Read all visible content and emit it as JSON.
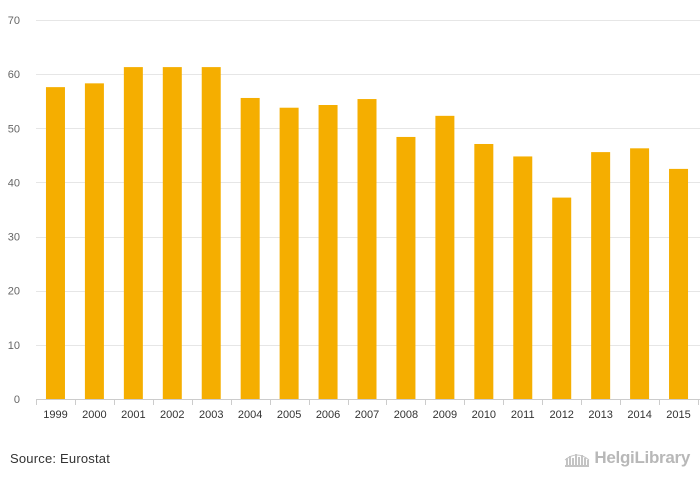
{
  "chart_data": {
    "type": "bar",
    "categories": [
      "1999",
      "2000",
      "2001",
      "2002",
      "2003",
      "2004",
      "2005",
      "2006",
      "2007",
      "2008",
      "2009",
      "2010",
      "2011",
      "2012",
      "2013",
      "2014",
      "2015"
    ],
    "values": [
      57.6,
      58.3,
      61.3,
      61.3,
      61.3,
      55.6,
      53.8,
      54.3,
      55.4,
      48.4,
      52.3,
      47.1,
      44.8,
      37.2,
      45.6,
      46.3,
      42.5
    ],
    "ylim": [
      0,
      70
    ],
    "yticks": [
      0,
      10,
      20,
      30,
      40,
      50,
      60,
      70
    ],
    "grid": true,
    "bar_color": "#f5ae00",
    "grid_color": "#e6e6e6"
  },
  "footer": {
    "source": "Source: Eurostat",
    "logo_text": "HelgiLibrary",
    "logo_icon": "library-building-icon"
  }
}
